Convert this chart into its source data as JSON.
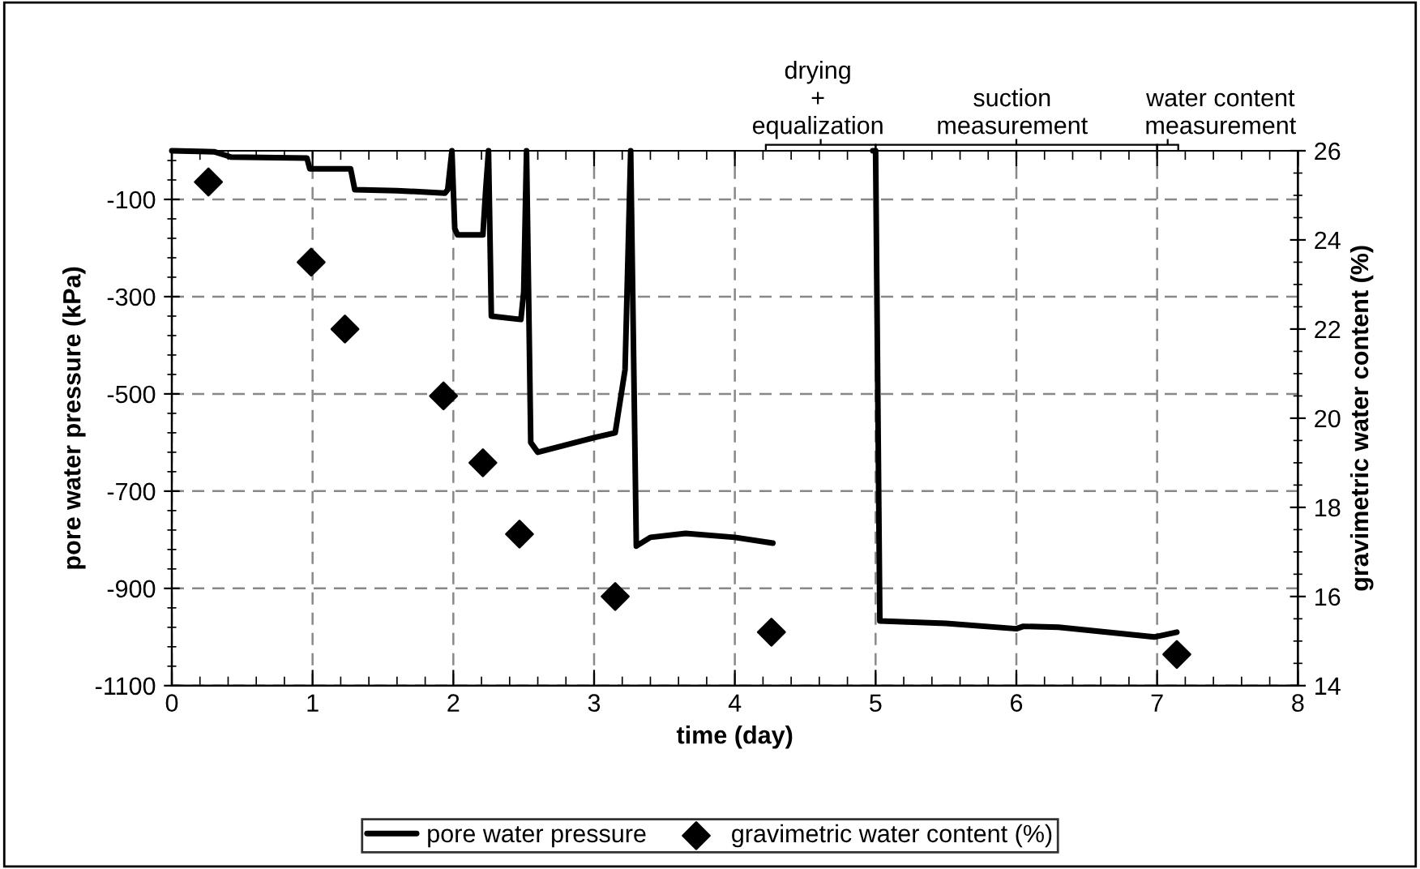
{
  "chart_data": {
    "type": "line",
    "xlabel": "time (day)",
    "ylabel": "pore water pressure (kPa)",
    "y2label": "gravimetric water content (%)",
    "xlim": [
      0,
      8
    ],
    "xticks": [
      0,
      1,
      2,
      3,
      4,
      5,
      6,
      7,
      8
    ],
    "ylim": [
      -1100,
      0
    ],
    "yticks": [
      -1100,
      -900,
      -700,
      -500,
      -300,
      -100
    ],
    "y2lim": [
      14,
      26
    ],
    "y2ticks": [
      14,
      16,
      18,
      20,
      22,
      24,
      26
    ],
    "grid": true,
    "legend": "bottom",
    "annotations": [
      "drying\n+\nequalization",
      "suction\nmeasurement",
      "water content\nmeasurement"
    ],
    "series": [
      {
        "name": "pore water pressure",
        "color": "#000000",
        "marker": "none",
        "line_style": "solid",
        "x": [
          0,
          0.3,
          0.39,
          0.42,
          0.96,
          0.98,
          1.27,
          1.3,
          1.6,
          1.94,
          1.96,
          1.99,
          2.01,
          2.03,
          2.21,
          2.23,
          2.25,
          2.27,
          2.48,
          2.5,
          2.52,
          2.55,
          2.6,
          2.8,
          3.0,
          3.15,
          3.22,
          3.26,
          3.3,
          3.4,
          3.65,
          4.0,
          4.27,
          4.33,
          4.98,
          5.0,
          5.03,
          5.5,
          6.0,
          6.05,
          6.3,
          6.98,
          7.14
        ],
        "values": [
          0,
          -2,
          -10,
          -13,
          -15,
          -37,
          -37,
          -80,
          -82,
          -87,
          -80,
          0,
          -160,
          -173,
          -173,
          -80,
          0,
          -340,
          -347,
          -290,
          0,
          -600,
          -620,
          -605,
          -590,
          -580,
          -450,
          0,
          -813,
          -795,
          -787,
          -795,
          -807,
          null,
          0,
          0,
          -967,
          -972,
          -983,
          -978,
          -980,
          -1000,
          -990
        ]
      },
      {
        "name": "gravimetric water content (%)",
        "type": "scatter",
        "axis": "y2",
        "color": "#000000",
        "marker": "diamond",
        "x": [
          0.26,
          0.99,
          1.23,
          1.93,
          2.21,
          2.47,
          3.15,
          4.26,
          7.14
        ],
        "values": [
          25.3,
          23.5,
          22.0,
          20.5,
          19.0,
          17.4,
          16.0,
          15.2,
          14.7
        ]
      }
    ]
  }
}
